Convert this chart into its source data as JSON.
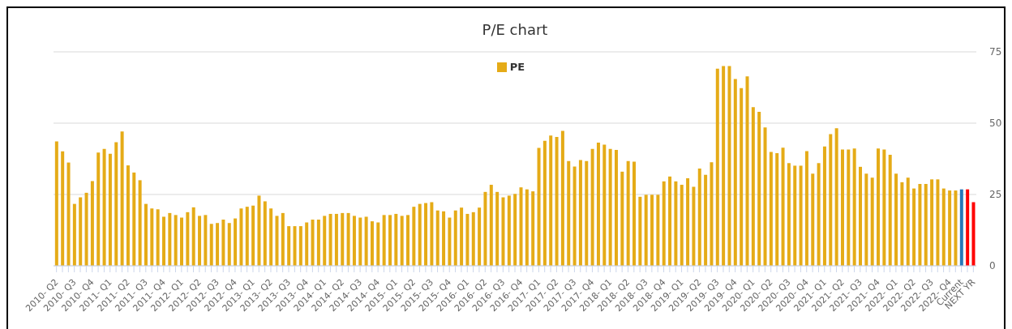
{
  "chart_data": {
    "type": "bar",
    "title": "P/E chart",
    "categories": [
      "2010- Q2",
      null,
      null,
      "2010- Q3",
      null,
      null,
      "2010- Q4",
      null,
      null,
      "2011- Q1",
      null,
      null,
      "2011- Q2",
      null,
      null,
      "2011- Q3",
      null,
      null,
      "2011- Q4",
      null,
      null,
      "2012- Q1",
      null,
      null,
      "2012- Q2",
      null,
      null,
      "2012- Q3",
      null,
      null,
      "2012- Q4",
      null,
      null,
      "2013- Q1",
      null,
      null,
      "2013- Q2",
      null,
      null,
      "2013- Q3",
      null,
      null,
      "2013- Q4",
      null,
      null,
      "2014- Q1",
      null,
      null,
      "2014- Q2",
      null,
      null,
      "2014- Q3",
      null,
      null,
      "2014- Q4",
      null,
      null,
      "2015- Q1",
      null,
      null,
      "2015- Q2",
      null,
      null,
      "2015- Q3",
      null,
      null,
      "2015- Q4",
      null,
      null,
      "2016- Q1",
      null,
      null,
      "2016- Q2",
      null,
      null,
      "2016- Q3",
      null,
      null,
      "2016- Q4",
      null,
      null,
      "2017- Q1",
      null,
      null,
      "2017- Q2",
      null,
      null,
      "2017- Q3",
      null,
      null,
      "2017- Q4",
      null,
      null,
      "2018- Q1",
      null,
      null,
      "2018- Q2",
      null,
      null,
      "2018- Q3",
      null,
      null,
      "2018- Q4",
      null,
      null,
      "2019- Q1",
      null,
      null,
      "2019- Q2",
      null,
      null,
      "2019- Q3",
      null,
      null,
      "2019- Q4",
      null,
      null,
      "2020- Q1",
      null,
      null,
      "2020- Q2",
      null,
      null,
      "2020- Q3",
      null,
      null,
      "2020- Q4",
      null,
      null,
      "2021- Q1",
      null,
      null,
      "2021- Q2",
      null,
      null,
      "2021- Q3",
      null,
      null,
      "2021- Q4",
      null,
      null,
      "2022- Q1",
      null,
      null,
      "2022- Q2",
      null,
      null,
      "2022- Q3",
      null,
      null,
      "2022- Q4",
      null,
      "Current",
      null,
      "NEXT YR"
    ],
    "series": [
      {
        "name": "PE",
        "color": "#e5ab17",
        "values": [
          43.6,
          40.1,
          36.2,
          21.7,
          24.0,
          25.6,
          29.7,
          39.7,
          41.0,
          39.3,
          43.3,
          47.1,
          35.2,
          32.7,
          30.0,
          21.7,
          20.1,
          19.8,
          17.2,
          18.5,
          17.8,
          16.9,
          18.8,
          20.5,
          17.5,
          17.8,
          14.7,
          15.0,
          16.2,
          15.0,
          16.6,
          20.1,
          20.7,
          21.1,
          24.6,
          22.6,
          20.1,
          17.5,
          18.5,
          13.9,
          13.9,
          13.9,
          15.2,
          16.2,
          16.2,
          17.5,
          18.2,
          18.2,
          18.5,
          18.5,
          17.5,
          16.9,
          17.2,
          15.6,
          15.2,
          17.8,
          17.8,
          18.2,
          17.5,
          17.8,
          20.7,
          21.7,
          22.0,
          22.3,
          19.4,
          19.1,
          16.9,
          19.4,
          20.4,
          18.2,
          18.8,
          20.4,
          25.9,
          28.4,
          25.9,
          24.0,
          24.6,
          25.2,
          27.5,
          26.8,
          26.1,
          41.3,
          43.8,
          45.7,
          45.2,
          47.3,
          36.7,
          34.8,
          37.1,
          36.7,
          41.0,
          43.2,
          42.5,
          41.0,
          40.6,
          33.0,
          36.7,
          36.5,
          24.2,
          24.9,
          24.9,
          24.9,
          29.6,
          31.3,
          29.6,
          28.4,
          30.7,
          27.7,
          34.1,
          31.9,
          36.3,
          69.1,
          70.0,
          70.0,
          65.5,
          62.3,
          66.4,
          55.6,
          54.0,
          48.5,
          39.9,
          39.5,
          41.4,
          36.0,
          35.1,
          35.1,
          40.2,
          32.3,
          36.0,
          41.8,
          46.2,
          48.2,
          40.8,
          40.8,
          41.1,
          34.7,
          32.3,
          30.9,
          41.1,
          40.8,
          38.9,
          32.3,
          29.3,
          30.9,
          27.1,
          28.7,
          28.7,
          30.3,
          30.3,
          27.1,
          26.4,
          26.4,
          26.8,
          26.8,
          22.3
        ],
        "colors": [
          "#e5ab17",
          "#e5ab17",
          "#e5ab17",
          "#e5ab17",
          "#e5ab17",
          "#e5ab17",
          "#e5ab17",
          "#e5ab17",
          "#e5ab17",
          "#e5ab17",
          "#e5ab17",
          "#e5ab17",
          "#e5ab17",
          "#e5ab17",
          "#e5ab17",
          "#e5ab17",
          "#e5ab17",
          "#e5ab17",
          "#e5ab17",
          "#e5ab17",
          "#e5ab17",
          "#e5ab17",
          "#e5ab17",
          "#e5ab17",
          "#e5ab17",
          "#e5ab17",
          "#e5ab17",
          "#e5ab17",
          "#e5ab17",
          "#e5ab17",
          "#e5ab17",
          "#e5ab17",
          "#e5ab17",
          "#e5ab17",
          "#e5ab17",
          "#e5ab17",
          "#e5ab17",
          "#e5ab17",
          "#e5ab17",
          "#e5ab17",
          "#e5ab17",
          "#e5ab17",
          "#e5ab17",
          "#e5ab17",
          "#e5ab17",
          "#e5ab17",
          "#e5ab17",
          "#e5ab17",
          "#e5ab17",
          "#e5ab17",
          "#e5ab17",
          "#e5ab17",
          "#e5ab17",
          "#e5ab17",
          "#e5ab17",
          "#e5ab17",
          "#e5ab17",
          "#e5ab17",
          "#e5ab17",
          "#e5ab17",
          "#e5ab17",
          "#e5ab17",
          "#e5ab17",
          "#e5ab17",
          "#e5ab17",
          "#e5ab17",
          "#e5ab17",
          "#e5ab17",
          "#e5ab17",
          "#e5ab17",
          "#e5ab17",
          "#e5ab17",
          "#e5ab17",
          "#e5ab17",
          "#e5ab17",
          "#e5ab17",
          "#e5ab17",
          "#e5ab17",
          "#e5ab17",
          "#e5ab17",
          "#e5ab17",
          "#e5ab17",
          "#e5ab17",
          "#e5ab17",
          "#e5ab17",
          "#e5ab17",
          "#e5ab17",
          "#e5ab17",
          "#e5ab17",
          "#e5ab17",
          "#e5ab17",
          "#e5ab17",
          "#e5ab17",
          "#e5ab17",
          "#e5ab17",
          "#e5ab17",
          "#e5ab17",
          "#e5ab17",
          "#e5ab17",
          "#e5ab17",
          "#e5ab17",
          "#e5ab17",
          "#e5ab17",
          "#e5ab17",
          "#e5ab17",
          "#e5ab17",
          "#e5ab17",
          "#e5ab17",
          "#e5ab17",
          "#e5ab17",
          "#e5ab17",
          "#e5ab17",
          "#e5ab17",
          "#e5ab17",
          "#e5ab17",
          "#e5ab17",
          "#e5ab17",
          "#e5ab17",
          "#e5ab17",
          "#e5ab17",
          "#e5ab17",
          "#e5ab17",
          "#e5ab17",
          "#e5ab17",
          "#e5ab17",
          "#e5ab17",
          "#e5ab17",
          "#e5ab17",
          "#e5ab17",
          "#e5ab17",
          "#e5ab17",
          "#e5ab17",
          "#e5ab17",
          "#e5ab17",
          "#e5ab17",
          "#e5ab17",
          "#e5ab17",
          "#e5ab17",
          "#e5ab17",
          "#e5ab17",
          "#e5ab17",
          "#e5ab17",
          "#e5ab17",
          "#e5ab17",
          "#e5ab17",
          "#e5ab17",
          "#e5ab17",
          "#e5ab17",
          "#e5ab17",
          "#e5ab17",
          "#e5ab17",
          "#e5ab17",
          "#2877b8",
          "#ff0000",
          "#ff0000"
        ]
      }
    ],
    "ylim": [
      0,
      75
    ],
    "yticks": [
      0,
      25,
      50,
      75
    ],
    "grid": "y",
    "legend": "top"
  }
}
